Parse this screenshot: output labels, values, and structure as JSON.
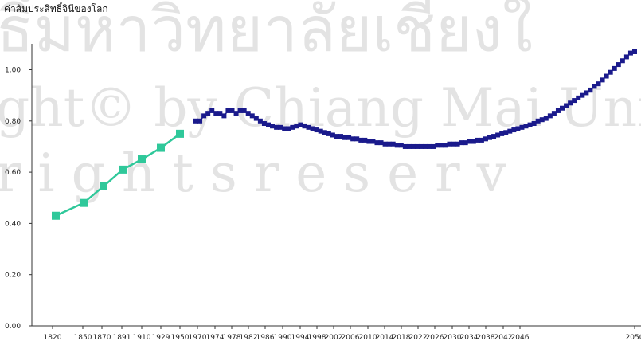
{
  "watermark": {
    "line1": "ธิ์มหาวิทยาลัยเชียงใ",
    "line2": "ght© by Chiang Mai Univ",
    "line3": "r i g h t s   r e s e r v"
  },
  "chart_data": {
    "type": "line",
    "title": "ค่าสัมประสิทธิ์จินีของโลก",
    "xlabel": "",
    "ylabel": "",
    "ylim": [
      0,
      1.1
    ],
    "grid": false,
    "y_ticks": [
      "0.00",
      "0.20",
      "0.40",
      "0.60",
      "0.80",
      "1.00"
    ],
    "x_ticks": [
      "1820",
      "1850",
      "1870",
      "1891",
      "1910",
      "1929",
      "1950",
      "1970",
      "1974",
      "1978",
      "1982",
      "1986",
      "1990",
      "1994",
      "1998",
      "2002",
      "2006",
      "2010",
      "2014",
      "2018",
      "2022",
      "2026",
      "2030",
      "2034",
      "2038",
      "2042",
      "2046",
      "2050"
    ],
    "colors": {
      "historical": "#2fc89a",
      "projection": "#1a1a8c",
      "axis": "#333333"
    },
    "series": [
      {
        "x": [
          "1820",
          "1850",
          "1870",
          "1891",
          "1910",
          "1929",
          "1950"
        ],
        "y": [
          0.43,
          0.48,
          0.545,
          0.61,
          0.65,
          0.695,
          0.75
        ]
      },
      {
        "x_start": 1970,
        "x_end": 2050,
        "y": [
          0.8,
          0.8,
          0.82,
          0.83,
          0.84,
          0.83,
          0.83,
          0.82,
          0.84,
          0.84,
          0.83,
          0.84,
          0.84,
          0.83,
          0.82,
          0.81,
          0.8,
          0.79,
          0.785,
          0.78,
          0.775,
          0.775,
          0.77,
          0.77,
          0.775,
          0.78,
          0.785,
          0.78,
          0.775,
          0.77,
          0.765,
          0.76,
          0.755,
          0.75,
          0.745,
          0.74,
          0.74,
          0.735,
          0.735,
          0.73,
          0.73,
          0.725,
          0.725,
          0.72,
          0.72,
          0.715,
          0.715,
          0.71,
          0.71,
          0.71,
          0.705,
          0.705,
          0.7,
          0.7,
          0.7,
          0.7,
          0.7,
          0.7,
          0.7,
          0.7,
          0.705,
          0.705,
          0.705,
          0.71,
          0.71,
          0.71,
          0.715,
          0.715,
          0.72,
          0.72,
          0.725,
          0.725,
          0.73,
          0.735,
          0.74,
          0.745,
          0.75,
          0.755,
          0.76,
          0.765,
          0.77,
          0.775,
          0.78,
          0.785,
          0.79,
          0.8,
          0.805,
          0.81,
          0.82,
          0.83,
          0.84,
          0.85,
          0.86,
          0.87,
          0.88,
          0.89,
          0.9,
          0.91,
          0.92,
          0.935,
          0.945,
          0.96,
          0.975,
          0.99,
          1.005,
          1.02,
          1.035,
          1.05,
          1.065,
          1.07
        ]
      }
    ]
  }
}
